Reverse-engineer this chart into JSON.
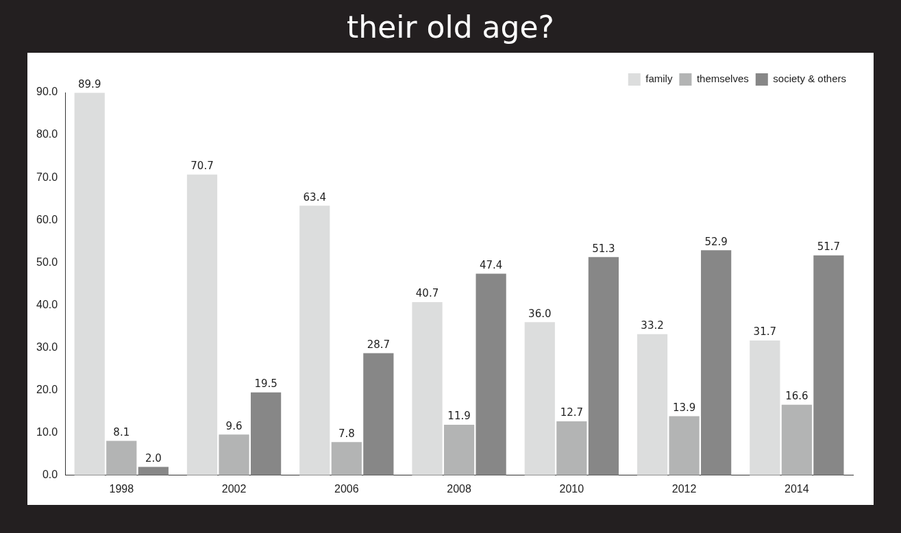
{
  "chart_data": {
    "type": "bar",
    "title": "their old age?",
    "categories": [
      "1998",
      "2002",
      "2006",
      "2008",
      "2010",
      "2012",
      "2014"
    ],
    "series": [
      {
        "name": "family",
        "color": "#dcdddd",
        "values": [
          89.9,
          70.7,
          63.4,
          40.7,
          36.0,
          33.2,
          31.7
        ],
        "value_labels": [
          "89.9",
          "70.7",
          "63.4",
          "40.7",
          "36.0",
          "33.2",
          "31.7"
        ]
      },
      {
        "name": "themselves",
        "color": "#b3b4b4",
        "values": [
          8.1,
          9.6,
          7.8,
          11.9,
          12.7,
          13.9,
          16.6
        ],
        "value_labels": [
          "8.1",
          "9.6",
          "7.8",
          "11.9",
          "12.7",
          "13.9",
          "16.6"
        ]
      },
      {
        "name": "society & others",
        "color": "#878787",
        "values": [
          2.0,
          19.5,
          28.7,
          47.4,
          51.3,
          52.9,
          51.7
        ],
        "value_labels": [
          "2.0",
          "19.5",
          "28.7",
          "47.4",
          "51.3",
          "52.9",
          "51.7"
        ]
      }
    ],
    "ylim": [
      0,
      90
    ],
    "yticks": [
      {
        "value": 0,
        "label": "0.0"
      },
      {
        "value": 10,
        "label": "10.0"
      },
      {
        "value": 20,
        "label": "20.0"
      },
      {
        "value": 30,
        "label": "30.0"
      },
      {
        "value": 40,
        "label": "40.0"
      },
      {
        "value": 50,
        "label": "50.0"
      },
      {
        "value": 60,
        "label": "60.0"
      },
      {
        "value": 70,
        "label": "70.0"
      },
      {
        "value": 80,
        "label": "80.0"
      },
      {
        "value": 90,
        "label": "90.0"
      }
    ],
    "grid": false,
    "legend": "top right"
  }
}
